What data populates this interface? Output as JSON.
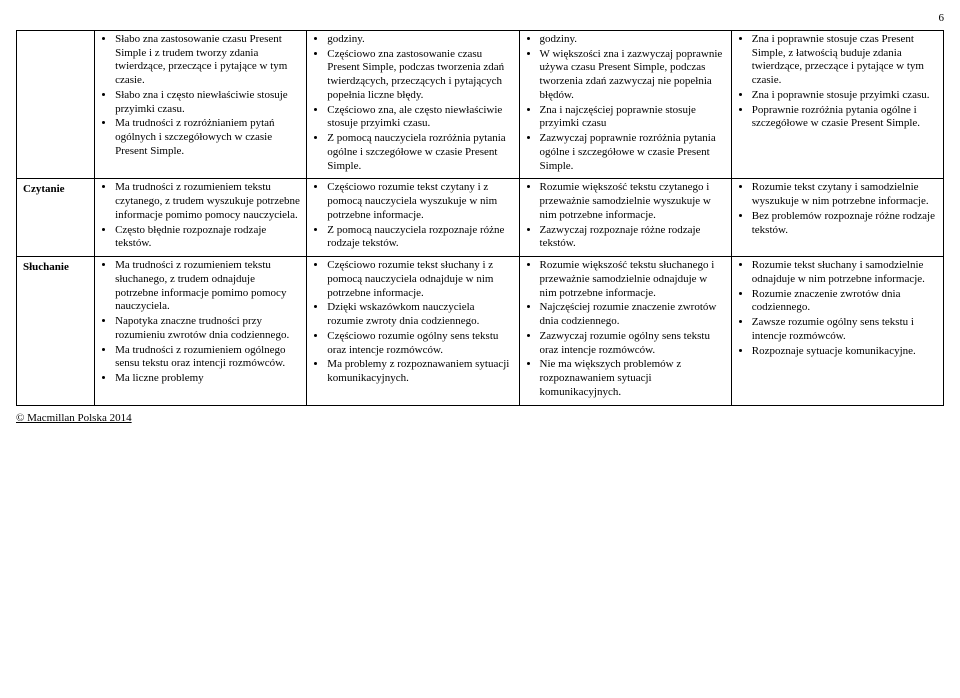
{
  "page_number": "6",
  "footer": "© Macmillan Polska 2014",
  "rows": [
    {
      "label": "",
      "cells": [
        [
          "Słabo zna zastosowanie czasu Present Simple i z trudem tworzy zdania twierdzące, przeczące i pytające w tym czasie.",
          "Słabo zna i często niewłaściwie stosuje przyimki czasu.",
          "Ma trudności z rozróżnianiem pytań ogólnych i szczegółowych w czasie Present Simple."
        ],
        [
          "godziny.",
          "Częściowo zna zastosowanie czasu Present Simple, podczas tworzenia zdań twierdzących, przeczących i pytających popełnia liczne błędy.",
          "Częściowo zna, ale często niewłaściwie stosuje przyimki czasu.",
          "Z pomocą nauczyciela rozróżnia pytania ogólne i szczegółowe w czasie Present Simple."
        ],
        [
          "godziny.",
          "W większości zna i zazwyczaj poprawnie używa czasu Present Simple, podczas tworzenia zdań zazwyczaj nie popełnia błędów.",
          "Zna i najczęściej poprawnie stosuje przyimki czasu",
          "Zazwyczaj poprawnie rozróżnia pytania ogólne i szczegółowe w czasie Present Simple."
        ],
        [
          "Zna i poprawnie stosuje czas Present Simple, z łatwością buduje zdania twierdzące, przeczące i pytające w tym czasie.",
          "Zna i poprawnie stosuje przyimki czasu.",
          "Poprawnie rozróżnia pytania ogólne i szczegółowe w czasie Present Simple."
        ]
      ]
    },
    {
      "label": "Czytanie",
      "cells": [
        [
          "Ma trudności z rozumieniem tekstu czytanego, z trudem wyszukuje potrzebne informacje pomimo pomocy nauczyciela.",
          "Często błędnie rozpoznaje rodzaje tekstów."
        ],
        [
          "Częściowo rozumie tekst czytany i z pomocą nauczyciela wyszukuje w nim potrzebne informacje.",
          "Z pomocą nauczyciela rozpoznaje różne rodzaje tekstów."
        ],
        [
          "Rozumie większość tekstu czytanego i przeważnie samodzielnie wyszukuje w nim potrzebne informacje.",
          "Zazwyczaj rozpoznaje różne rodzaje tekstów."
        ],
        [
          "Rozumie tekst czytany i samodzielnie wyszukuje w nim potrzebne informacje.",
          "Bez problemów rozpoznaje różne rodzaje tekstów."
        ]
      ]
    },
    {
      "label": "Słuchanie",
      "cells": [
        [
          "Ma trudności z rozumieniem tekstu słuchanego, z trudem odnajduje potrzebne informacje pomimo pomocy nauczyciela.",
          "Napotyka znaczne trudności przy rozumieniu zwrotów dnia codziennego.",
          "Ma trudności z rozumieniem ogólnego sensu tekstu oraz intencji rozmówców.",
          "Ma liczne problemy"
        ],
        [
          "Częściowo rozumie tekst słuchany i z pomocą nauczyciela odnajduje w nim potrzebne informacje.",
          "Dzięki wskazówkom nauczyciela rozumie zwroty dnia codziennego.",
          "Częściowo rozumie ogólny sens tekstu oraz intencje rozmówców.",
          "Ma problemy z rozpoznawaniem sytuacji komunikacyjnych."
        ],
        [
          "Rozumie większość tekstu słuchanego i przeważnie samodzielnie odnajduje w nim potrzebne informacje.",
          "Najczęściej rozumie znaczenie zwrotów dnia codziennego.",
          "Zazwyczaj rozumie ogólny sens tekstu oraz intencje rozmówców.",
          "Nie ma większych problemów z rozpoznawaniem sytuacji komunikacyjnych."
        ],
        [
          "Rozumie tekst słuchany i samodzielnie odnajduje w nim potrzebne informacje.",
          "Rozumie znaczenie zwrotów dnia codziennego.",
          "Zawsze rozumie ogólny sens tekstu i intencje rozmówców.",
          "Rozpoznaje sytuacje komunikacyjne."
        ]
      ]
    }
  ]
}
